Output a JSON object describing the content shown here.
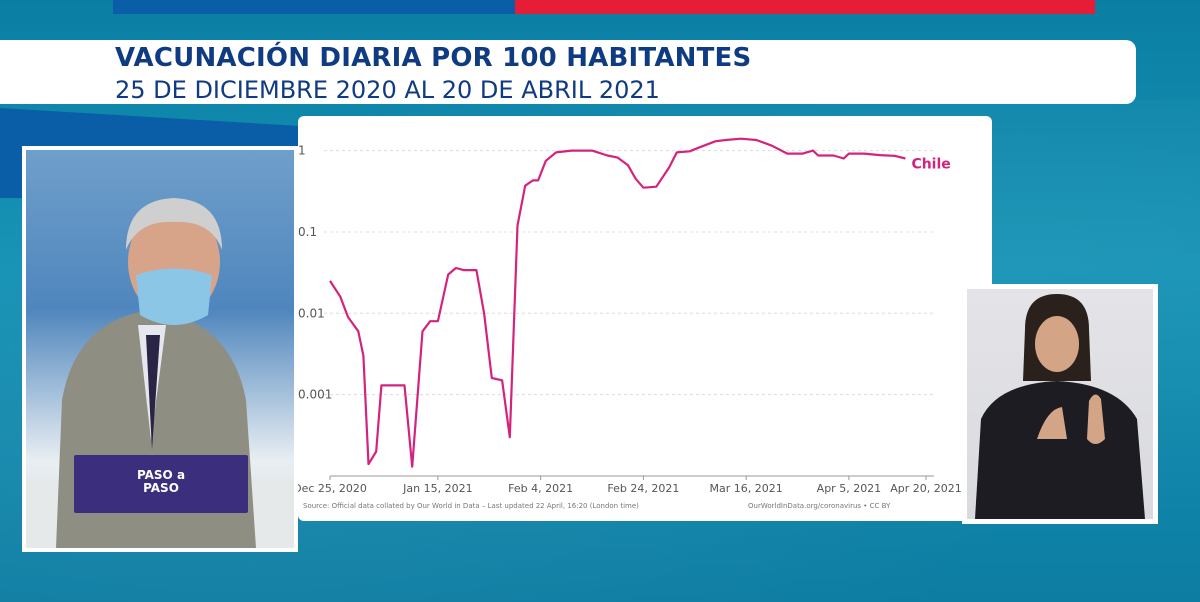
{
  "header": {
    "title": "VACUNACIÓN DIARIA POR 100 HABITANTES",
    "subtitle": "25 DE DICIEMBRE 2020 AL 20 DE ABRIL 2021"
  },
  "colors": {
    "series": "#d4237d",
    "title_text": "#0f3b82",
    "bar_blue": "#0a5ea8",
    "bar_red": "#e51d36"
  },
  "chart_data": {
    "type": "line",
    "y_scale": "log",
    "ylim": [
      0.0001,
      1.6
    ],
    "y_ticks": [
      {
        "value": 1,
        "label": "1"
      },
      {
        "value": 0.1,
        "label": "0.1"
      },
      {
        "value": 0.01,
        "label": "0.01"
      },
      {
        "value": 0.001,
        "label": "0.001"
      }
    ],
    "x_ticks": [
      {
        "day": 0,
        "label": "Dec 25, 2020"
      },
      {
        "day": 21,
        "label": "Jan 15, 2021"
      },
      {
        "day": 41,
        "label": "Feb 4, 2021"
      },
      {
        "day": 61,
        "label": "Feb 24, 2021"
      },
      {
        "day": 81,
        "label": "Mar 16, 2021"
      },
      {
        "day": 101,
        "label": "Apr 5, 2021"
      },
      {
        "day": 116,
        "label": "Apr 20, 2021"
      }
    ],
    "xlim": [
      0,
      116
    ],
    "grid": true,
    "series": [
      {
        "name": "Chile",
        "points": [
          [
            0,
            0.025
          ],
          [
            2,
            0.016
          ],
          [
            3.5,
            0.009
          ],
          [
            5.5,
            0.006
          ],
          [
            6.5,
            0.003
          ],
          [
            7.5,
            0.00014
          ],
          [
            9,
            0.0002
          ],
          [
            10,
            0.0013
          ],
          [
            13,
            0.0013
          ],
          [
            14.5,
            0.0013
          ],
          [
            16,
            0.00013
          ],
          [
            18,
            0.006
          ],
          [
            19.5,
            0.008
          ],
          [
            21,
            0.008
          ],
          [
            23,
            0.03
          ],
          [
            24.5,
            0.036
          ],
          [
            26,
            0.034
          ],
          [
            28.5,
            0.034
          ],
          [
            30,
            0.01
          ],
          [
            31.5,
            0.0016
          ],
          [
            33.5,
            0.0015
          ],
          [
            35,
            0.0003
          ],
          [
            36.5,
            0.12
          ],
          [
            38,
            0.37
          ],
          [
            39.5,
            0.43
          ],
          [
            40.5,
            0.43
          ],
          [
            42,
            0.75
          ],
          [
            44,
            0.95
          ],
          [
            47,
            1.0
          ],
          [
            51,
            1.0
          ],
          [
            54,
            0.87
          ],
          [
            56,
            0.82
          ],
          [
            58,
            0.66
          ],
          [
            59.5,
            0.45
          ],
          [
            61,
            0.35
          ],
          [
            63.5,
            0.36
          ],
          [
            66,
            0.62
          ],
          [
            67.5,
            0.95
          ],
          [
            70,
            0.98
          ],
          [
            72,
            1.1
          ],
          [
            75,
            1.3
          ],
          [
            77,
            1.35
          ],
          [
            80,
            1.4
          ],
          [
            83,
            1.35
          ],
          [
            86,
            1.15
          ],
          [
            89,
            0.92
          ],
          [
            92,
            0.92
          ],
          [
            94,
            1.0
          ],
          [
            95,
            0.87
          ],
          [
            98,
            0.87
          ],
          [
            100,
            0.8
          ],
          [
            101,
            0.92
          ],
          [
            104,
            0.92
          ],
          [
            107,
            0.88
          ],
          [
            110,
            0.86
          ],
          [
            112,
            0.8
          ]
        ]
      }
    ]
  },
  "source": {
    "left": "Source: Official data collated by Our World in Data – Last updated 22 April, 16:20 (London time)",
    "right": "OurWorldInData.org/coronavirus • CC BY"
  },
  "podium": {
    "line1": "PASO a",
    "line2": "PASO"
  }
}
